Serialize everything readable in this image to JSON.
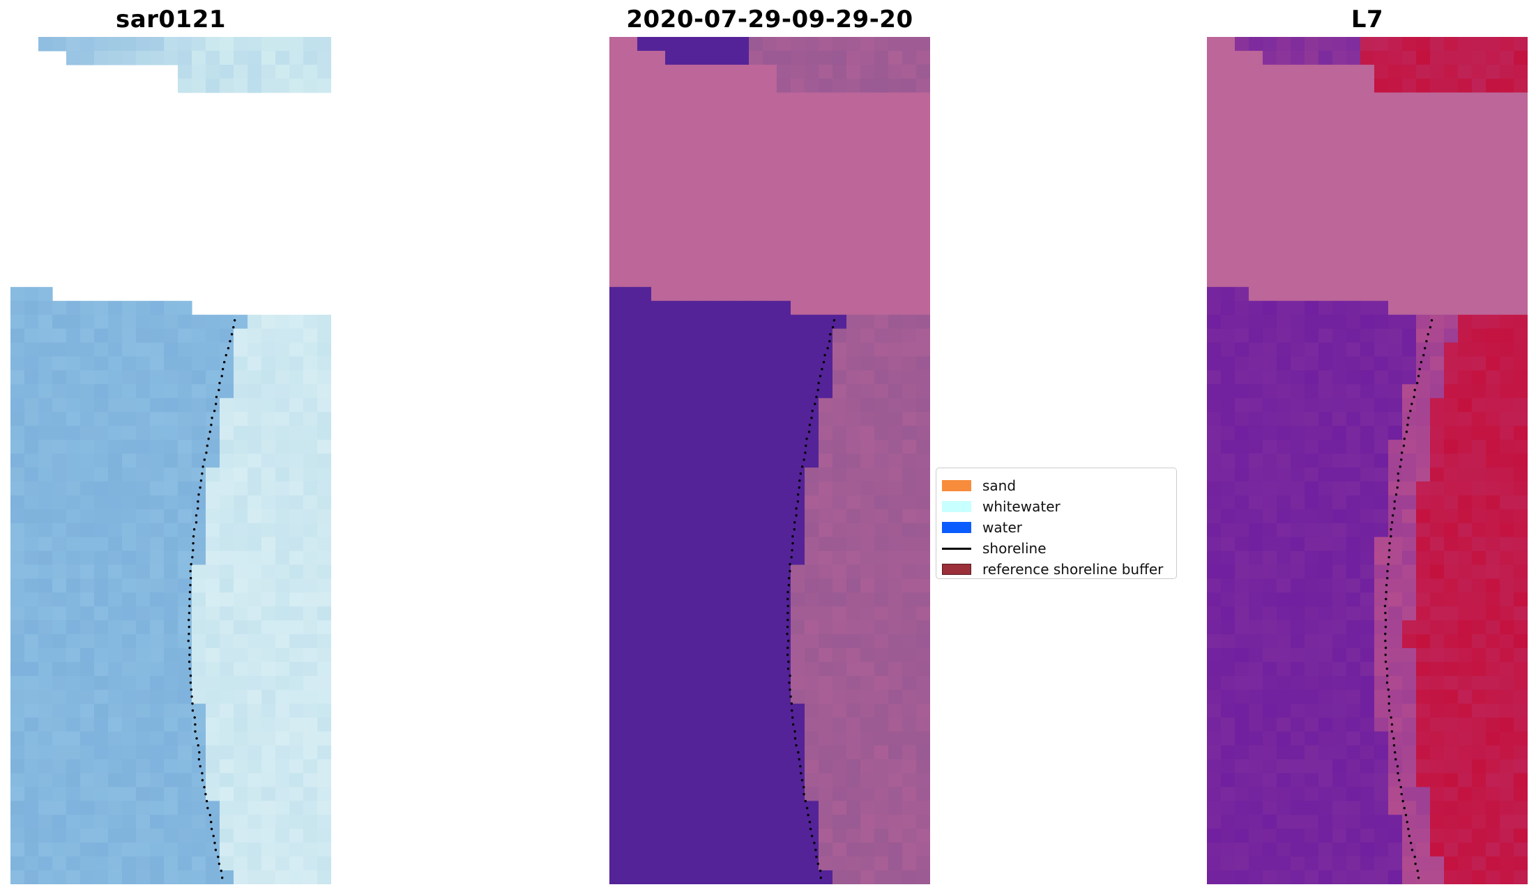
{
  "panels": [
    {
      "title": "sar0121",
      "scheme": "rgb"
    },
    {
      "title": "2020-07-29-09-29-20",
      "scheme": "class"
    },
    {
      "title": "L7",
      "scheme": "index"
    }
  ],
  "legend": [
    {
      "label": "sand",
      "color": "#f78c3c",
      "kind": "patch"
    },
    {
      "label": "whitewater",
      "color": "#c8ffff",
      "kind": "patch"
    },
    {
      "label": "water",
      "color": "#0a5cff",
      "kind": "patch"
    },
    {
      "label": "shoreline",
      "color": "#000000",
      "kind": "line"
    },
    {
      "label": "reference shoreline buffer",
      "color": "#9b2f3a",
      "kind": "patch"
    }
  ],
  "colors": {
    "rgb_sea": "#7fb2dc",
    "rgb_beach": "#c6e4ee",
    "class_water": "#542398",
    "class_land": "#9a5a93",
    "class_nodata": "#bc6699",
    "index_water": "#7b2a9e",
    "index_land": "#c4123f",
    "index_mid": "#b24c8f",
    "index_nodata": "#bc6699"
  }
}
